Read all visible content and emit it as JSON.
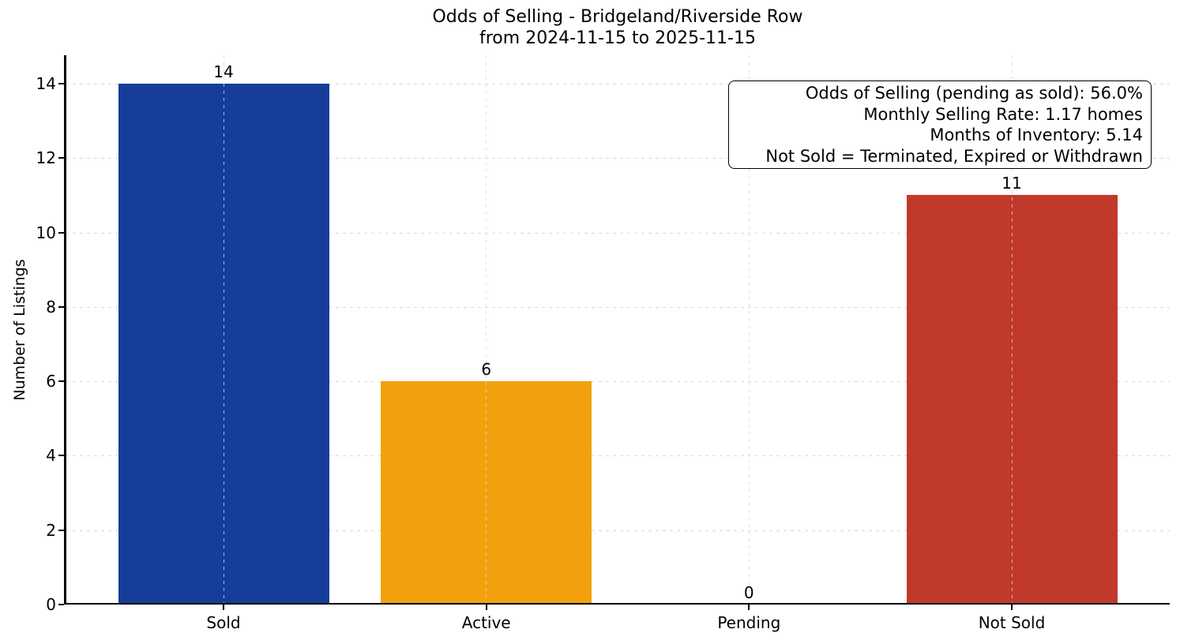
{
  "chart_data": {
    "type": "bar",
    "title": "Odds of Selling - Bridgeland/Riverside Row",
    "subtitle": "from 2024-11-15 to 2025-11-15",
    "ylabel": "Number of Listings",
    "xlabel": "",
    "categories": [
      "Sold",
      "Active",
      "Pending",
      "Not Sold"
    ],
    "values": [
      14,
      6,
      0,
      11
    ],
    "value_labels": [
      "14",
      "6",
      "0",
      "11"
    ],
    "bar_colors": [
      "#153D99",
      "#F2A10D",
      null,
      "#C0392B"
    ],
    "yticks": [
      0,
      2,
      4,
      6,
      8,
      10,
      12,
      14
    ],
    "ylim": [
      0,
      14.76
    ],
    "grid": {
      "style": "dashed",
      "axes": "both",
      "color": "#e0e0e0"
    },
    "legend": null,
    "axis_color": "#000000",
    "background_color": "#ffffff",
    "annotation": {
      "lines": [
        "Odds of Selling (pending as sold): 56.0%",
        "Monthly Selling Rate: 1.17 homes",
        "Months of Inventory: 5.14",
        "Not Sold = Terminated, Expired or Withdrawn"
      ]
    }
  }
}
